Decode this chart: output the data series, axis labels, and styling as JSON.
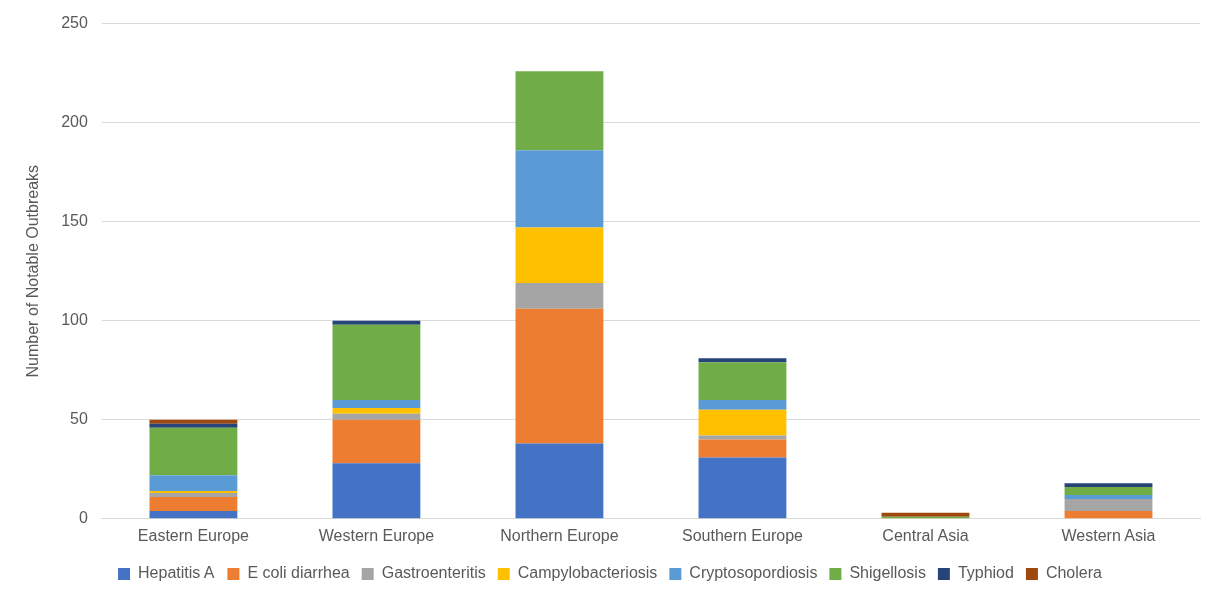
{
  "chart_data": {
    "type": "bar",
    "stacked": true,
    "ylabel": "Number of Notable Outbreaks",
    "categories": [
      "Eastern Europe",
      "Western Europe",
      "Northern Europe",
      "Southern Europe",
      "Central Asia",
      "Western Asia"
    ],
    "series": [
      {
        "name": "Hepatitis A",
        "color": "#4472c4",
        "values": [
          4,
          28,
          38,
          31,
          0,
          0
        ]
      },
      {
        "name": "E coli diarrhea",
        "color": "#ed7d31",
        "values": [
          7,
          22,
          68,
          9,
          0,
          4
        ]
      },
      {
        "name": "Gastroenteritis",
        "color": "#a5a5a5",
        "values": [
          2,
          3,
          13,
          2,
          0,
          6
        ]
      },
      {
        "name": "Campylobacteriosis",
        "color": "#ffc000",
        "values": [
          1,
          3,
          28,
          13,
          0,
          0
        ]
      },
      {
        "name": "Cryptosopordiosis",
        "color": "#5b9bd5",
        "values": [
          8,
          4,
          39,
          5,
          0,
          2
        ]
      },
      {
        "name": "Shigellosis",
        "color": "#70ad47",
        "values": [
          24,
          38,
          40,
          19,
          1,
          4
        ]
      },
      {
        "name": "Typhiod",
        "color": "#264478",
        "values": [
          2,
          2,
          0,
          2,
          0,
          2
        ]
      },
      {
        "name": "Cholera",
        "color": "#9e480e",
        "values": [
          2,
          0,
          0,
          0,
          2,
          0
        ]
      }
    ],
    "ylim": [
      0,
      250
    ],
    "yticks": [
      0,
      50,
      100,
      150,
      200,
      250
    ],
    "grid": "y",
    "legend": "bottom"
  }
}
